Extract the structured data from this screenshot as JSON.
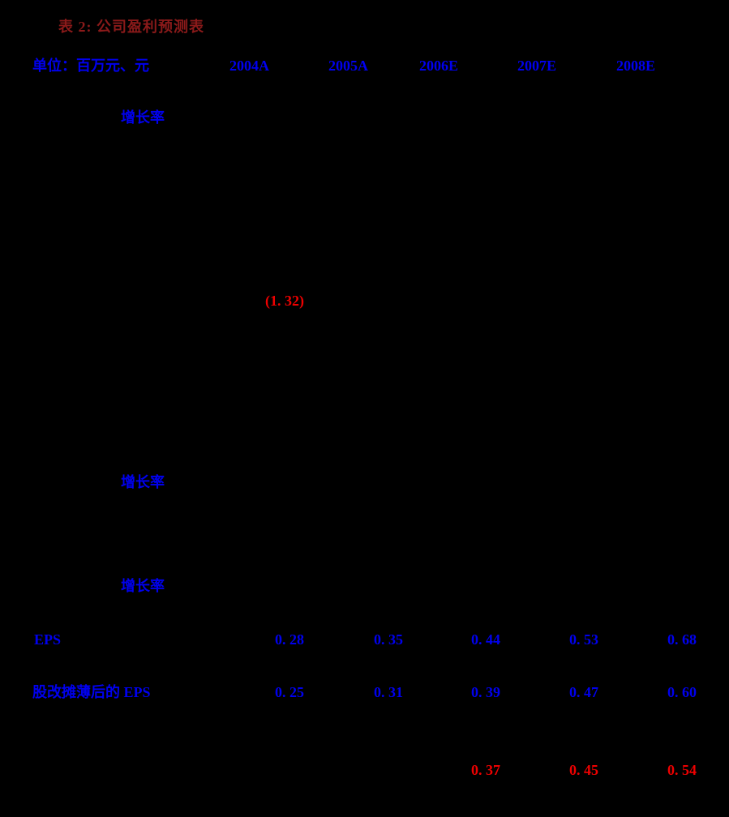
{
  "colors": {
    "background": "#000000",
    "title_red": "#8B1A1A",
    "text_blue": "#0000EE",
    "value_red": "#EE0000"
  },
  "table": {
    "title": "表 2: 公司盈利预测表",
    "unit_label": "单位：百万元、元",
    "columns": [
      "2004A",
      "2005A",
      "2006E",
      "2007E",
      "2008E"
    ],
    "growth_rate_label_1": "增长率",
    "loss_value_2004": "(1. 32)",
    "growth_rate_label_2": "增长率",
    "growth_rate_label_3": "增长率",
    "eps_row": {
      "label": "EPS",
      "values": [
        "0. 28",
        "0. 35",
        "0. 44",
        "0. 53",
        "0. 68"
      ]
    },
    "diluted_eps_row": {
      "label": "股改摊薄后的 EPS",
      "values": [
        "0. 25",
        "0. 31",
        "0. 39",
        "0. 47",
        "0. 60"
      ]
    },
    "bottom_row": {
      "values": [
        "0. 37",
        "0. 45",
        "0. 54"
      ]
    }
  }
}
